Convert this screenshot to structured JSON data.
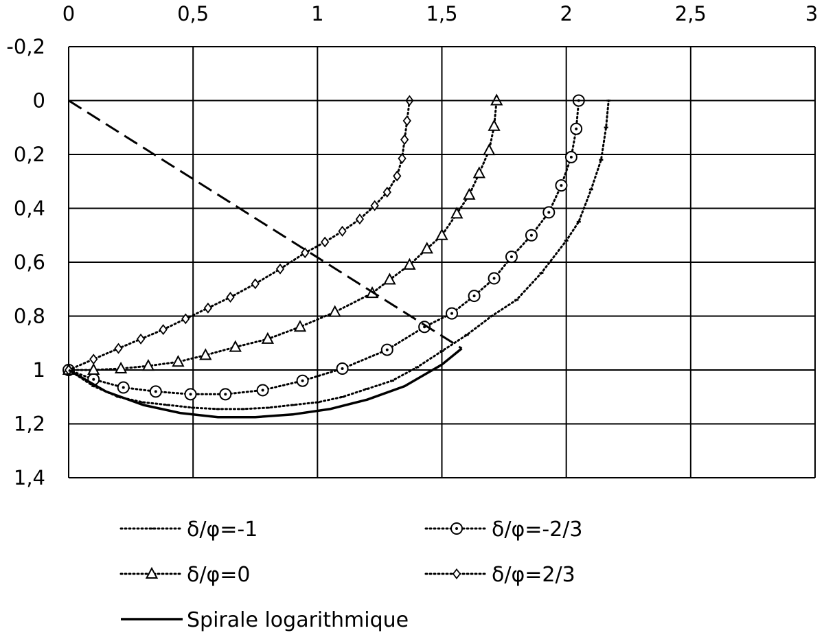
{
  "chart_data": {
    "type": "line",
    "title": "",
    "xlabel": "",
    "ylabel": "",
    "xlim": [
      0,
      3
    ],
    "ylim": [
      -0.2,
      1.4
    ],
    "y_inverted": true,
    "x_axis_position": "top",
    "grid": true,
    "legend_placement": "bottom",
    "x_tick_labels": [
      "0",
      "0,5",
      "1",
      "1,5",
      "2",
      "2,5",
      "3"
    ],
    "x_tick_values": [
      0,
      0.5,
      1,
      1.5,
      2,
      2.5,
      3
    ],
    "y_tick_labels": [
      "-0,2",
      "0",
      "0,2",
      "0,4",
      "0,6",
      "0,8",
      "1",
      "1,2",
      "1,4"
    ],
    "y_tick_values": [
      -0.2,
      0,
      0.2,
      0.4,
      0.6,
      0.8,
      1.0,
      1.2,
      1.4
    ],
    "series": [
      {
        "name": "δ/φ=-1",
        "line": "dotted",
        "marker": "dash",
        "color": "#000000",
        "points": [
          [
            0,
            1.0
          ],
          [
            0.1,
            1.06
          ],
          [
            0.2,
            1.1
          ],
          [
            0.3,
            1.12
          ],
          [
            0.4,
            1.13
          ],
          [
            0.5,
            1.14
          ],
          [
            0.6,
            1.145
          ],
          [
            0.7,
            1.145
          ],
          [
            0.8,
            1.14
          ],
          [
            0.9,
            1.13
          ],
          [
            1.0,
            1.12
          ],
          [
            1.1,
            1.1
          ],
          [
            1.2,
            1.07
          ],
          [
            1.3,
            1.04
          ],
          [
            1.4,
            0.99
          ],
          [
            1.5,
            0.93
          ],
          [
            1.6,
            0.87
          ],
          [
            1.7,
            0.8
          ],
          [
            1.8,
            0.74
          ],
          [
            1.9,
            0.64
          ],
          [
            2.0,
            0.52
          ],
          [
            2.05,
            0.45
          ],
          [
            2.1,
            0.33
          ],
          [
            2.14,
            0.22
          ],
          [
            2.16,
            0.1
          ],
          [
            2.17,
            0.0
          ]
        ]
      },
      {
        "name": "δ/φ=-2/3",
        "line": "dotted",
        "marker": "circle",
        "color": "#000000",
        "points": [
          [
            0,
            1.0
          ],
          [
            0.1,
            1.035
          ],
          [
            0.22,
            1.065
          ],
          [
            0.35,
            1.08
          ],
          [
            0.49,
            1.09
          ],
          [
            0.63,
            1.09
          ],
          [
            0.78,
            1.075
          ],
          [
            0.94,
            1.04
          ],
          [
            1.1,
            0.995
          ],
          [
            1.28,
            0.925
          ],
          [
            1.43,
            0.84
          ],
          [
            1.54,
            0.79
          ],
          [
            1.63,
            0.725
          ],
          [
            1.71,
            0.66
          ],
          [
            1.78,
            0.58
          ],
          [
            1.86,
            0.5
          ],
          [
            1.93,
            0.415
          ],
          [
            1.98,
            0.315
          ],
          [
            2.02,
            0.21
          ],
          [
            2.04,
            0.105
          ],
          [
            2.05,
            0.0
          ]
        ]
      },
      {
        "name": "δ/φ=0",
        "line": "dotted",
        "marker": "triangle",
        "color": "#000000",
        "points": [
          [
            0,
            1.0
          ],
          [
            0.1,
            1.0
          ],
          [
            0.21,
            0.995
          ],
          [
            0.32,
            0.985
          ],
          [
            0.44,
            0.97
          ],
          [
            0.55,
            0.945
          ],
          [
            0.67,
            0.915
          ],
          [
            0.8,
            0.885
          ],
          [
            0.93,
            0.84
          ],
          [
            1.07,
            0.785
          ],
          [
            1.22,
            0.715
          ],
          [
            1.29,
            0.665
          ],
          [
            1.37,
            0.61
          ],
          [
            1.44,
            0.55
          ],
          [
            1.5,
            0.5
          ],
          [
            1.56,
            0.42
          ],
          [
            1.61,
            0.35
          ],
          [
            1.65,
            0.27
          ],
          [
            1.69,
            0.185
          ],
          [
            1.71,
            0.095
          ],
          [
            1.72,
            0.0
          ]
        ]
      },
      {
        "name": "δ/φ=2/3",
        "line": "dotted",
        "marker": "diamond",
        "color": "#000000",
        "points": [
          [
            0,
            1.0
          ],
          [
            0.1,
            0.96
          ],
          [
            0.2,
            0.92
          ],
          [
            0.29,
            0.885
          ],
          [
            0.38,
            0.85
          ],
          [
            0.47,
            0.81
          ],
          [
            0.56,
            0.77
          ],
          [
            0.65,
            0.73
          ],
          [
            0.75,
            0.68
          ],
          [
            0.85,
            0.625
          ],
          [
            0.95,
            0.565
          ],
          [
            1.03,
            0.525
          ],
          [
            1.1,
            0.485
          ],
          [
            1.17,
            0.44
          ],
          [
            1.23,
            0.39
          ],
          [
            1.28,
            0.34
          ],
          [
            1.32,
            0.28
          ],
          [
            1.34,
            0.215
          ],
          [
            1.35,
            0.145
          ],
          [
            1.36,
            0.075
          ],
          [
            1.37,
            0.0
          ]
        ]
      },
      {
        "name": "Spirale logarithmique",
        "line": "solid-thick",
        "marker": "none",
        "color": "#000000",
        "points": [
          [
            0,
            1.0
          ],
          [
            0.15,
            1.08
          ],
          [
            0.3,
            1.13
          ],
          [
            0.45,
            1.16
          ],
          [
            0.6,
            1.175
          ],
          [
            0.75,
            1.175
          ],
          [
            0.9,
            1.165
          ],
          [
            1.05,
            1.145
          ],
          [
            1.2,
            1.11
          ],
          [
            1.35,
            1.06
          ],
          [
            1.5,
            0.98
          ],
          [
            1.58,
            0.92
          ]
        ]
      },
      {
        "name": "",
        "line": "dashed-thick",
        "marker": "none",
        "color": "#000000",
        "show_in_legend": false,
        "points": [
          [
            0,
            0.0
          ],
          [
            1.58,
            0.92
          ]
        ]
      },
      {
        "name": "",
        "line": "solid",
        "marker": "none",
        "color": "#000000",
        "show_in_legend": false,
        "points": [
          [
            0,
            0.0
          ],
          [
            2.55,
            0.0
          ]
        ]
      }
    ]
  }
}
